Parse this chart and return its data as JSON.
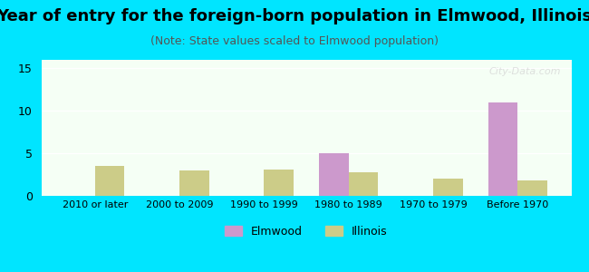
{
  "title": "Year of entry for the foreign-born population in Elmwood, Illinois",
  "subtitle": "(Note: State values scaled to Elmwood population)",
  "categories": [
    "2010 or later",
    "2000 to 2009",
    "1990 to 1999",
    "1980 to 1989",
    "1970 to 1979",
    "Before 1970"
  ],
  "elmwood_values": [
    0,
    0,
    0,
    5,
    0,
    11
  ],
  "illinois_values": [
    3.5,
    3.0,
    3.1,
    2.8,
    2.0,
    1.8
  ],
  "elmwood_color": "#cc99cc",
  "illinois_color": "#cccc88",
  "background_outer": "#00e5ff",
  "background_inner_top": "#f0fff0",
  "background_inner_bottom": "#e8ffe8",
  "ylim": [
    0,
    16
  ],
  "yticks": [
    0,
    5,
    10,
    15
  ],
  "bar_width": 0.35,
  "title_fontsize": 13,
  "subtitle_fontsize": 9,
  "watermark": "City-Data.com"
}
